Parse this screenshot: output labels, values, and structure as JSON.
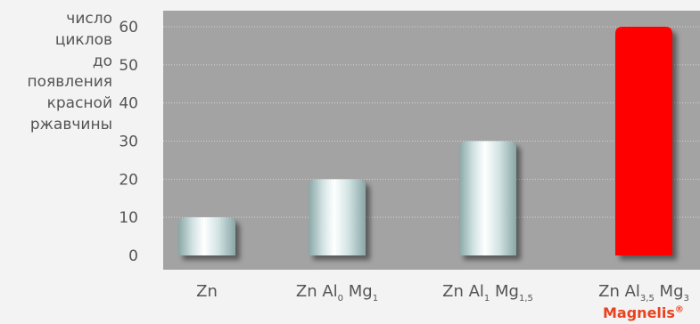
{
  "chart_data": {
    "type": "bar",
    "ylabel_lines": [
      "число",
      "циклов",
      "до",
      "появления",
      "красной",
      "ржавчины"
    ],
    "yticks": [
      0,
      10,
      20,
      30,
      40,
      50,
      60
    ],
    "ylim": [
      0,
      60
    ],
    "grid": true,
    "categories": [
      {
        "base": "Zn",
        "parts": []
      },
      {
        "base": "Zn Al",
        "parts": [
          {
            "sub": "0"
          },
          {
            "text": " Mg"
          },
          {
            "sub": "1"
          }
        ]
      },
      {
        "base": "Zn Al",
        "parts": [
          {
            "sub": "1"
          },
          {
            "text": " Mg"
          },
          {
            "sub": "1,5"
          }
        ]
      },
      {
        "base": "Zn Al",
        "parts": [
          {
            "sub": "3,5"
          },
          {
            "text": " Mg"
          },
          {
            "sub": "3"
          }
        ]
      }
    ],
    "values": [
      10,
      20,
      30,
      60
    ],
    "highlight_index": 3,
    "colors": {
      "plot_bg": "#a3a3a3",
      "grid": "#d6d6d6",
      "bar_light": "#ffffff",
      "bar_mid": "#d2e3e3",
      "bar_dark": "#8aa6a6",
      "highlight": "#ff0000",
      "axis_text": "#555555",
      "brand": "#e8421e"
    }
  },
  "brand": {
    "name": "Magnelis",
    "mark": "®"
  }
}
